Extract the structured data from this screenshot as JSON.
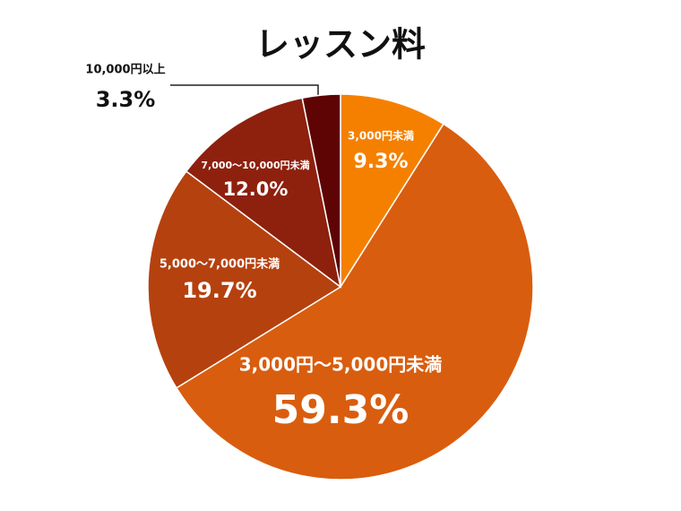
{
  "chart_data": {
    "type": "pie",
    "title": "レッスン料",
    "categories": [
      "3,000円未満",
      "3,000円〜5,000円未満",
      "5,000〜7,000円未満",
      "7,000〜10,000円未満",
      "10,000円以上"
    ],
    "values": [
      9.3,
      59.3,
      19.7,
      12.0,
      3.3
    ],
    "value_labels": [
      "9.3%",
      "59.3%",
      "19.7%",
      "12.0%",
      "3.3%"
    ],
    "colors": [
      "#f58000",
      "#d95d0e",
      "#b5410f",
      "#8e200e",
      "#5e0404"
    ]
  }
}
